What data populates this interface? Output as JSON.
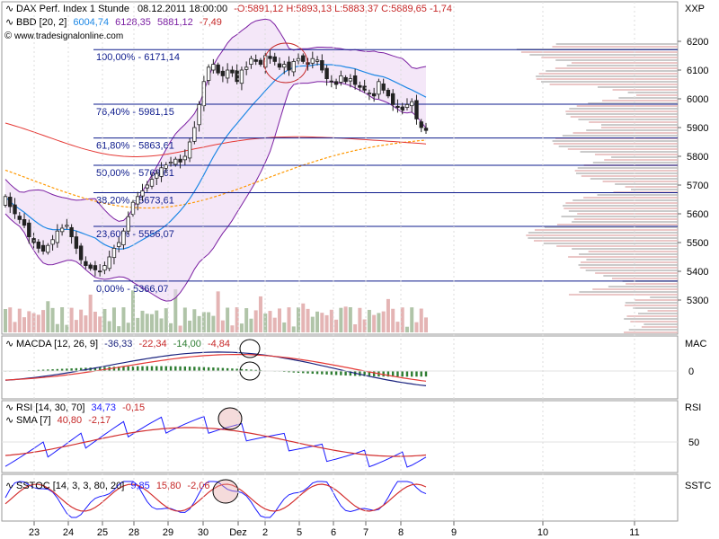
{
  "header": {
    "symbol": "DAX Perf. Index 1 Stunde",
    "datetime": "08.12.2011 18:00:00",
    "ohlc": "-O:5891,12 H:5893,13 L:5883,37 C:5889,65 -1,74",
    "bbd_label": "BBD [20, 2]",
    "bbd_v1": "6004,74",
    "bbd_v2": "6128,35",
    "bbd_v3": "5881,12",
    "bbd_v4": "-7,49",
    "site": "www.tradesignalonline.com",
    "instrument_label": "XXP"
  },
  "colors": {
    "up": "#2e7d32",
    "down": "#c62828",
    "boll": "#7b1fa2",
    "ma20": "#1e88e5",
    "ma_long": "#ff9800",
    "ma_red": "#e53935",
    "fib": "#0d1b8c",
    "vol_up": "#b0c4a8",
    "vol_down": "#e4b4b4",
    "macd_line": "#1a237e",
    "macd_signal": "#e53935",
    "macd_hist": "#2e7d32",
    "ind_blue": "#1a1aff",
    "ind_red": "#d32f2f",
    "grid": "#dddddd"
  },
  "main_panel": {
    "y_ticks": [
      "6200",
      "6100",
      "6000",
      "5900",
      "5800",
      "5700",
      "5600",
      "5500",
      "5400",
      "5300"
    ],
    "fib_levels": [
      {
        "label": "100,00% - 6171,14",
        "value": 6171.14
      },
      {
        "label": "76,40% - 5981,15",
        "value": 5981.15
      },
      {
        "label": "61,80% - 5863,61",
        "value": 5863.61
      },
      {
        "label": "50,00% - 5768,61",
        "value": 5768.61
      },
      {
        "label": "38,20% - 5673,61",
        "value": 5673.61
      },
      {
        "label": "23,60% - 5556,07",
        "value": 5556.07
      },
      {
        "label": "0,00% - 5366,07",
        "value": 5366.07
      }
    ]
  },
  "macd_panel": {
    "label": "MACDA [12, 26, 9]",
    "v1": "-36,33",
    "v2": "-22,34",
    "v3": "-14,00",
    "v4": "-4,84",
    "right_label": "MAC",
    "tick_zero": "0"
  },
  "rsi_panel": {
    "label1": "RSI [14, 30, 70]",
    "v1a": "34,73",
    "v1b": "-0,15",
    "label2": "SMA [7]",
    "v2a": "40,80",
    "v2b": "-2,17",
    "right_label": "RSI",
    "tick": "50"
  },
  "sstoc_panel": {
    "label": "SSTOC [14, 3, 3, 80, 20]",
    "v1": "9,85",
    "v2": "15,80",
    "v3": "-2,06",
    "right_label": "SSTC"
  },
  "x_axis": {
    "labels": [
      "23",
      "24",
      "25",
      "28",
      "29",
      "30",
      "Dez",
      "2",
      "5",
      "6",
      "7",
      "8",
      "9",
      "10",
      "11"
    ]
  },
  "chart_data": {
    "type": "candlestick",
    "title": "DAX Perf. Index 1 Stunde",
    "ylim": [
      5230,
      6250
    ],
    "close_approx": [
      5660,
      5625,
      5600,
      5580,
      5560,
      5520,
      5500,
      5480,
      5470,
      5490,
      5510,
      5540,
      5550,
      5560,
      5520,
      5480,
      5440,
      5420,
      5410,
      5405,
      5400,
      5420,
      5450,
      5480,
      5500,
      5540,
      5590,
      5640,
      5660,
      5680,
      5700,
      5720,
      5740,
      5760,
      5770,
      5780,
      5790,
      5780,
      5800,
      5850,
      5900,
      5980,
      6060,
      6110,
      6120,
      6090,
      6080,
      6100,
      6090,
      6060,
      6100,
      6110,
      6140,
      6130,
      6120,
      6150,
      6140,
      6130,
      6110,
      6120,
      6100,
      6130,
      6140,
      6130,
      6120,
      6140,
      6135,
      6100,
      6070,
      6060,
      6050,
      6080,
      6060,
      6070,
      6050,
      6040,
      6030,
      6020,
      6010,
      6060,
      6030,
      6010,
      5980,
      5970,
      5960,
      5980,
      5990,
      5930,
      5900,
      5890
    ],
    "fib_retracement": [
      6171.14,
      5981.15,
      5863.61,
      5768.61,
      5673.61,
      5556.07,
      5366.07
    ]
  }
}
